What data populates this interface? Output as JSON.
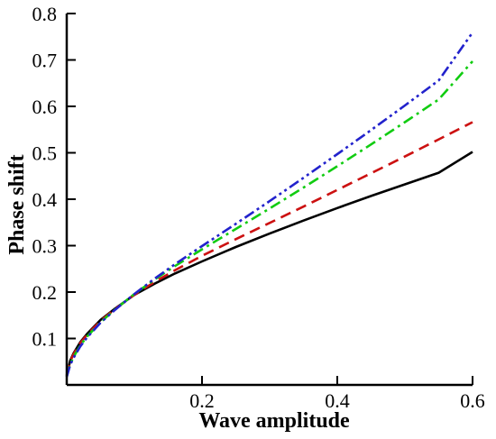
{
  "chart_data": {
    "type": "line",
    "title": "",
    "xlabel": "Wave amplitude",
    "ylabel": "Phase shift",
    "xlim": [
      0,
      0.6
    ],
    "ylim": [
      0,
      0.8
    ],
    "x_ticks": [
      0.2,
      0.4,
      0.6
    ],
    "x_tick_labels": [
      "0.2",
      "0.4",
      "0.6"
    ],
    "y_ticks": [
      0.1,
      0.2,
      0.3,
      0.4,
      0.5,
      0.6,
      0.7,
      0.8
    ],
    "y_tick_labels": [
      "0.1",
      "0.2",
      "0.3",
      "0.4",
      "0.5",
      "0.6",
      "0.7",
      "0.8"
    ],
    "grid": false,
    "legend": "none",
    "series": [
      {
        "color": "#000000",
        "dash": "solid",
        "x": [
          0.0,
          0.005,
          0.01,
          0.02,
          0.03,
          0.05,
          0.07,
          0.1,
          0.13,
          0.16,
          0.2,
          0.25,
          0.3,
          0.35,
          0.4,
          0.45,
          0.5,
          0.55,
          0.6
        ],
        "y": [
          0.02,
          0.052,
          0.068,
          0.092,
          0.11,
          0.14,
          0.163,
          0.194,
          0.218,
          0.24,
          0.266,
          0.297,
          0.326,
          0.354,
          0.381,
          0.407,
          0.432,
          0.457,
          0.502
        ]
      },
      {
        "color": "#cc1111",
        "dash": "dashed",
        "x": [
          0.0,
          0.005,
          0.01,
          0.02,
          0.03,
          0.05,
          0.07,
          0.1,
          0.13,
          0.16,
          0.2,
          0.25,
          0.3,
          0.35,
          0.4,
          0.45,
          0.5,
          0.55,
          0.6
        ],
        "y": [
          0.02,
          0.05,
          0.066,
          0.09,
          0.108,
          0.138,
          0.162,
          0.194,
          0.222,
          0.247,
          0.278,
          0.314,
          0.349,
          0.384,
          0.42,
          0.456,
          0.492,
          0.529,
          0.566
        ]
      },
      {
        "color": "#11cc11",
        "dash": "dashdot",
        "x": [
          0.0,
          0.005,
          0.01,
          0.02,
          0.03,
          0.05,
          0.07,
          0.1,
          0.13,
          0.16,
          0.2,
          0.25,
          0.3,
          0.35,
          0.4,
          0.45,
          0.5,
          0.55,
          0.6
        ],
        "y": [
          0.018,
          0.045,
          0.06,
          0.085,
          0.104,
          0.135,
          0.161,
          0.196,
          0.227,
          0.256,
          0.292,
          0.336,
          0.38,
          0.425,
          0.471,
          0.518,
          0.566,
          0.615,
          0.697
        ]
      },
      {
        "color": "#2222cc",
        "dash": "dashdotdot",
        "x": [
          0.0,
          0.005,
          0.01,
          0.02,
          0.03,
          0.05,
          0.07,
          0.1,
          0.13,
          0.16,
          0.2,
          0.25,
          0.3,
          0.35,
          0.4,
          0.45,
          0.5,
          0.55,
          0.6
        ],
        "y": [
          0.017,
          0.043,
          0.058,
          0.083,
          0.102,
          0.134,
          0.16,
          0.196,
          0.229,
          0.26,
          0.299,
          0.347,
          0.396,
          0.446,
          0.497,
          0.549,
          0.602,
          0.656,
          0.759
        ]
      }
    ]
  }
}
